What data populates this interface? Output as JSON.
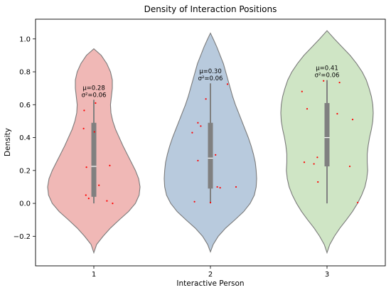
{
  "chart_data": {
    "type": "violin",
    "title": "Density of Interaction Positions",
    "xlabel": "Interactive Person",
    "ylabel": "Density",
    "categories": [
      "1",
      "2",
      "3"
    ],
    "ylim": [
      -0.38,
      1.12
    ],
    "yticks": [
      -0.2,
      0.0,
      0.2,
      0.4,
      0.6,
      0.8,
      1.0
    ],
    "ytick_labels": [
      "−0.2",
      "0.0",
      "0.2",
      "0.4",
      "0.6",
      "0.8",
      "1.0"
    ],
    "grid": false,
    "colors": {
      "fills": [
        "#f0b8b6",
        "#b8cadd",
        "#cfe5c5"
      ],
      "outline": "#7a7a7a",
      "box": "#808080",
      "median": "#ffffff",
      "points": "#ff0000"
    },
    "series": [
      {
        "category": "1",
        "violin_extent": [
          -0.3,
          0.94
        ],
        "violin_profile": [
          [
            -0.3,
            0.0
          ],
          [
            -0.25,
            0.06
          ],
          [
            -0.2,
            0.2
          ],
          [
            -0.15,
            0.36
          ],
          [
            -0.1,
            0.55
          ],
          [
            -0.05,
            0.75
          ],
          [
            0.0,
            0.9
          ],
          [
            0.05,
            0.98
          ],
          [
            0.1,
            1.0
          ],
          [
            0.15,
            0.97
          ],
          [
            0.2,
            0.9
          ],
          [
            0.25,
            0.81
          ],
          [
            0.3,
            0.72
          ],
          [
            0.35,
            0.63
          ],
          [
            0.4,
            0.55
          ],
          [
            0.45,
            0.47
          ],
          [
            0.5,
            0.41
          ],
          [
            0.55,
            0.37
          ],
          [
            0.6,
            0.36
          ],
          [
            0.65,
            0.38
          ],
          [
            0.7,
            0.4
          ],
          [
            0.75,
            0.4
          ],
          [
            0.8,
            0.36
          ],
          [
            0.85,
            0.28
          ],
          [
            0.9,
            0.16
          ],
          [
            0.94,
            0.0
          ]
        ],
        "box": {
          "q1": 0.04,
          "median": 0.225,
          "q3": 0.49,
          "whisker_low": 0.0,
          "whisker_high": 0.63
        },
        "mean_label": "μ=0.28",
        "var_label": "σ²=0.06",
        "points": [
          [
            -0.14,
            0.05
          ],
          [
            -0.17,
            0.565
          ],
          [
            -0.18,
            0.455
          ],
          [
            -0.13,
            0.22
          ],
          [
            -0.09,
            0.03
          ],
          [
            0.03,
            0.61
          ],
          [
            0.01,
            0.435
          ],
          [
            0.09,
            0.11
          ],
          [
            0.28,
            0.23
          ],
          [
            0.23,
            0.015
          ],
          [
            0.33,
            0.0
          ]
        ]
      },
      {
        "category": "2",
        "violin_extent": [
          -0.295,
          1.035
        ],
        "violin_profile": [
          [
            -0.295,
            0.0
          ],
          [
            -0.25,
            0.06
          ],
          [
            -0.2,
            0.17
          ],
          [
            -0.15,
            0.33
          ],
          [
            -0.1,
            0.53
          ],
          [
            -0.05,
            0.72
          ],
          [
            0.0,
            0.86
          ],
          [
            0.05,
            0.95
          ],
          [
            0.1,
            0.99
          ],
          [
            0.15,
            1.0
          ],
          [
            0.2,
            0.99
          ],
          [
            0.25,
            0.97
          ],
          [
            0.3,
            0.93
          ],
          [
            0.35,
            0.88
          ],
          [
            0.4,
            0.82
          ],
          [
            0.45,
            0.75
          ],
          [
            0.5,
            0.68
          ],
          [
            0.55,
            0.61
          ],
          [
            0.6,
            0.54
          ],
          [
            0.65,
            0.48
          ],
          [
            0.7,
            0.43
          ],
          [
            0.75,
            0.38
          ],
          [
            0.8,
            0.33
          ],
          [
            0.85,
            0.28
          ],
          [
            0.9,
            0.21
          ],
          [
            0.95,
            0.14
          ],
          [
            1.0,
            0.06
          ],
          [
            1.035,
            0.0
          ]
        ],
        "box": {
          "q1": 0.09,
          "median": 0.275,
          "q3": 0.49,
          "whisker_low": 0.0,
          "whisker_high": 0.73
        },
        "mean_label": "μ=0.30",
        "var_label": "σ²=0.06",
        "points": [
          [
            -0.32,
            0.43
          ],
          [
            -0.22,
            0.26
          ],
          [
            -0.28,
            0.01
          ],
          [
            -0.22,
            0.49
          ],
          [
            -0.17,
            0.47
          ],
          [
            -0.08,
            0.635
          ],
          [
            0.0,
            0.005
          ],
          [
            0.09,
            0.295
          ],
          [
            0.12,
            0.1
          ],
          [
            0.17,
            0.095
          ],
          [
            0.3,
            0.725
          ],
          [
            0.45,
            0.1
          ]
        ]
      },
      {
        "category": "3",
        "violin_extent": [
          -0.3,
          1.05
        ],
        "violin_profile": [
          [
            -0.3,
            0.0
          ],
          [
            -0.25,
            0.06
          ],
          [
            -0.2,
            0.16
          ],
          [
            -0.15,
            0.28
          ],
          [
            -0.1,
            0.42
          ],
          [
            -0.05,
            0.55
          ],
          [
            0.0,
            0.66
          ],
          [
            0.05,
            0.75
          ],
          [
            0.1,
            0.82
          ],
          [
            0.15,
            0.86
          ],
          [
            0.2,
            0.88
          ],
          [
            0.25,
            0.87
          ],
          [
            0.3,
            0.87
          ],
          [
            0.35,
            0.89
          ],
          [
            0.4,
            0.92
          ],
          [
            0.45,
            0.96
          ],
          [
            0.5,
            0.99
          ],
          [
            0.55,
            1.0
          ],
          [
            0.6,
            0.99
          ],
          [
            0.65,
            0.96
          ],
          [
            0.7,
            0.91
          ],
          [
            0.75,
            0.85
          ],
          [
            0.8,
            0.76
          ],
          [
            0.85,
            0.64
          ],
          [
            0.9,
            0.5
          ],
          [
            0.95,
            0.33
          ],
          [
            1.0,
            0.16
          ],
          [
            1.05,
            0.0
          ]
        ],
        "box": {
          "q1": 0.225,
          "median": 0.4,
          "q3": 0.61,
          "whisker_low": 0.0,
          "whisker_high": 0.75
        },
        "mean_label": "μ=0.41",
        "var_label": "σ²=0.06",
        "points": [
          [
            -0.44,
            0.68
          ],
          [
            -0.35,
            0.575
          ],
          [
            -0.4,
            0.25
          ],
          [
            -0.17,
            0.28
          ],
          [
            -0.23,
            0.24
          ],
          [
            -0.16,
            0.13
          ],
          [
            -0.06,
            0.745
          ],
          [
            0.22,
            0.735
          ],
          [
            0.18,
            0.545
          ],
          [
            0.45,
            0.51
          ],
          [
            0.4,
            0.225
          ],
          [
            0.54,
            0.005
          ]
        ]
      }
    ]
  }
}
